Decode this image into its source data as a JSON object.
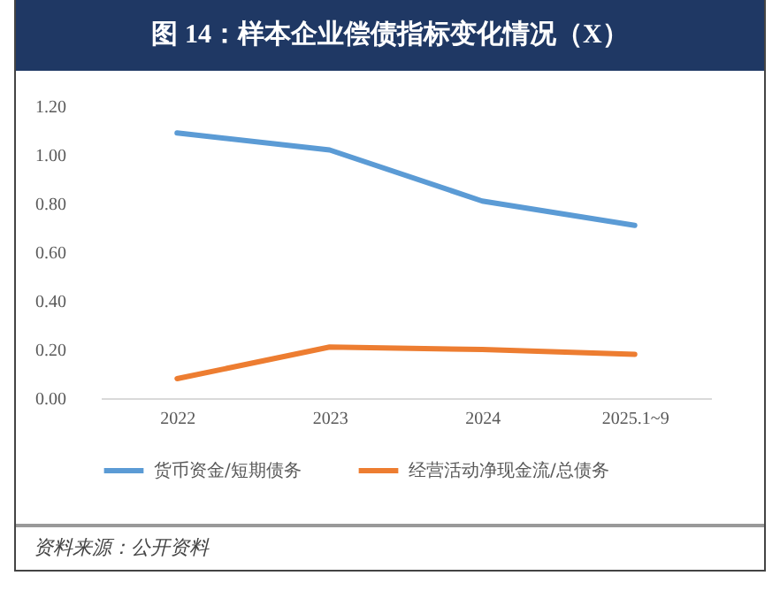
{
  "chart_data": {
    "type": "line",
    "title": "图 14：样本企业偿债指标变化情况（X）",
    "categories": [
      "2022",
      "2023",
      "2024",
      "2025.1~9"
    ],
    "series": [
      {
        "name": "货币资金/短期债务",
        "color": "#5b9bd5",
        "values": [
          1.09,
          1.02,
          0.81,
          0.71
        ]
      },
      {
        "name": "经营活动净现金流/总债务",
        "color": "#ed7d31",
        "values": [
          0.08,
          0.21,
          0.2,
          0.18
        ]
      }
    ],
    "ylim": [
      0,
      1.2
    ],
    "yticks": [
      {
        "value": 0,
        "label": "0.00"
      },
      {
        "value": 0.2,
        "label": "0.20"
      },
      {
        "value": 0.4,
        "label": "0.40"
      },
      {
        "value": 0.6,
        "label": "0.60"
      },
      {
        "value": 0.8,
        "label": "0.80"
      },
      {
        "value": 1.0,
        "label": "1.00"
      },
      {
        "value": 1.2,
        "label": "1.20"
      }
    ],
    "grid": false,
    "legend": "bottom",
    "marker": "none",
    "line_style": "solid",
    "annotations": [
      "资料来源：公开资料"
    ]
  }
}
